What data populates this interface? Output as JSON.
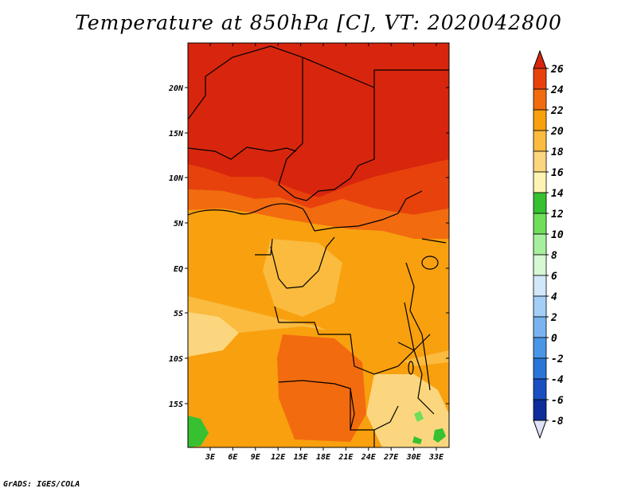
{
  "title": "Temperature at 850hPa [C], VT: 2020042800",
  "footer": "GrADS: IGES/COLA",
  "map": {
    "variable": "Temperature at 850hPa",
    "units": "C",
    "valid_time": "2020042800",
    "lat_ticks": [
      "20N",
      "15N",
      "10N",
      "5N",
      "EQ",
      "5S",
      "10S",
      "15S"
    ],
    "lon_ticks": [
      "3E",
      "6E",
      "9E",
      "12E",
      "15E",
      "18E",
      "21E",
      "24E",
      "27E",
      "30E",
      "33E"
    ],
    "colorbar": {
      "labels": [
        "26",
        "24",
        "22",
        "20",
        "18",
        "16",
        "14",
        "12",
        "10",
        "8",
        "6",
        "4",
        "2",
        "0",
        "-2",
        "-4",
        "-6",
        "-8"
      ],
      "colors": [
        "#d7260d",
        "#e8420c",
        "#f26b0e",
        "#f8a00e",
        "#fabb3e",
        "#fcd67e",
        "#fef3b3",
        "#37c131",
        "#6fde5b",
        "#a6f09d",
        "#d6f8d2",
        "#d1e8fb",
        "#a3cff6",
        "#79b4f0",
        "#4a95e6",
        "#2b75d8",
        "#1a4fc2",
        "#0d2d9a",
        "#0a0a6e",
        "#dfe3f8"
      ]
    }
  }
}
